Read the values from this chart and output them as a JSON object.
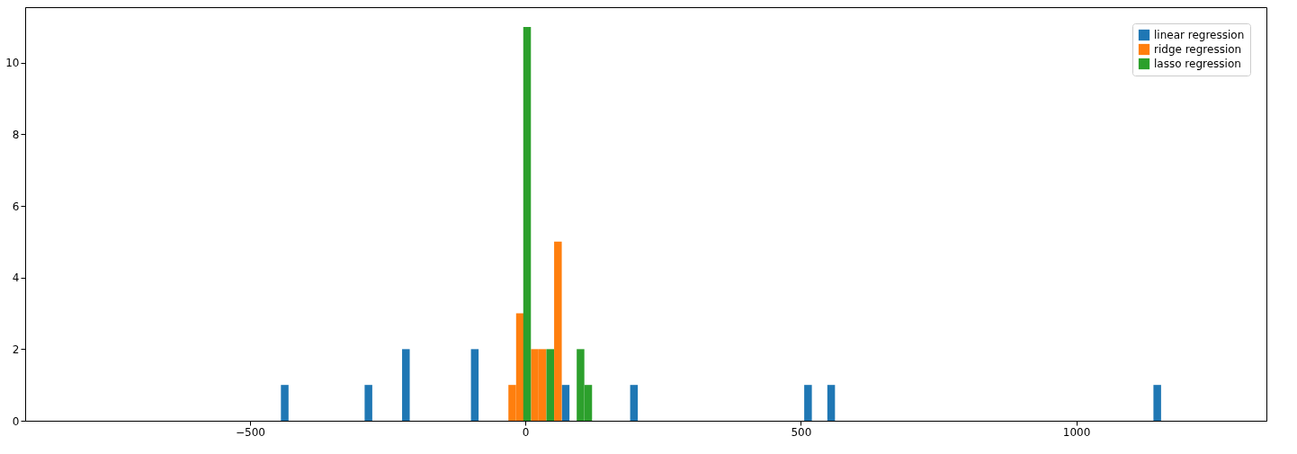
{
  "chart_data": {
    "type": "bar",
    "series": [
      {
        "name": "linear regression",
        "color": "#1f77b4",
        "x": [
          -437,
          -285,
          -217,
          -92,
          73,
          197,
          513,
          555,
          1147
        ],
        "values": [
          1,
          1,
          2,
          2,
          1,
          1,
          1,
          1,
          1
        ]
      },
      {
        "name": "ridge regression",
        "color": "#ff7f0e",
        "x": [
          -24,
          -10,
          17,
          31,
          59
        ],
        "values": [
          1,
          3,
          2,
          2,
          5
        ]
      },
      {
        "name": "lasso regression",
        "color": "#2ca02c",
        "x": [
          3,
          45,
          100,
          114
        ],
        "values": [
          11,
          2,
          2,
          1
        ]
      }
    ],
    "xlim": [
      -900,
      1337
    ],
    "xticks": [
      -500,
      0,
      500,
      1000
    ],
    "ylim": [
      0,
      11.55
    ],
    "yticks": [
      0,
      2,
      4,
      6,
      8,
      10
    ],
    "legend": "top right",
    "grid": false
  }
}
